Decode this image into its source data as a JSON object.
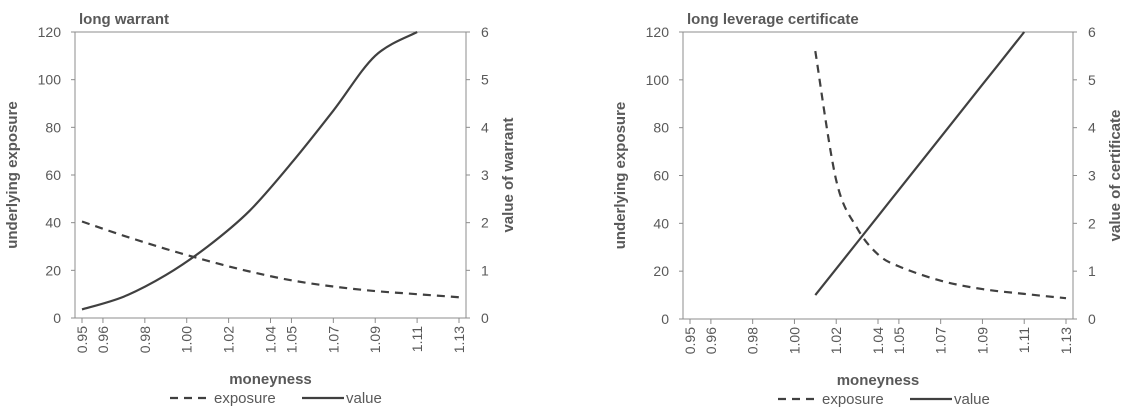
{
  "colors": {
    "axis": "#8c8c8c",
    "line": "#404040",
    "text": "#595959"
  },
  "chart_data": [
    {
      "type": "line",
      "title": "long warrant",
      "xlabel": "moneyness",
      "ylabel": "underlying exposure",
      "y2label": "value of warrant",
      "categories": [
        "0.95",
        "0.96",
        "0.98",
        "1.00",
        "1.02",
        "1.04",
        "1.05",
        "1.07",
        "1.09",
        "1.11",
        "1.13"
      ],
      "ylim": [
        0,
        120
      ],
      "y2lim": [
        0,
        6
      ],
      "yticks": [
        "0",
        "20",
        "40",
        "60",
        "80",
        "100",
        "120"
      ],
      "y2ticks": [
        "0",
        "1",
        "2",
        "3",
        "4",
        "5",
        "6"
      ],
      "grid": false,
      "legend": "bottom",
      "legend_labels": [
        "exposure",
        "value"
      ],
      "series": [
        {
          "name": "exposure",
          "axis": "left",
          "style": "dashed",
          "x": [
            0.95,
            0.97,
            0.99,
            1.01,
            1.03,
            1.05,
            1.07,
            1.09,
            1.11,
            1.13
          ],
          "values": [
            40.5,
            34.5,
            29.0,
            24.0,
            19.5,
            15.8,
            13.2,
            11.3,
            10.0,
            8.7
          ]
        },
        {
          "name": "value",
          "axis": "right",
          "style": "solid",
          "x": [
            0.95,
            0.97,
            0.99,
            1.01,
            1.03,
            1.05,
            1.07,
            1.09,
            1.11
          ],
          "values": [
            0.18,
            0.45,
            0.9,
            1.5,
            2.25,
            3.25,
            4.35,
            5.5,
            6.0
          ]
        }
      ]
    },
    {
      "type": "line",
      "title": "long leverage certificate",
      "xlabel": "moneyness",
      "ylabel": "underlying exposure",
      "y2label": "value of certificate",
      "categories": [
        "0.95",
        "0.96",
        "0.98",
        "1.00",
        "1.02",
        "1.04",
        "1.05",
        "1.07",
        "1.09",
        "1.11",
        "1.13"
      ],
      "ylim": [
        0,
        120
      ],
      "y2lim": [
        0,
        6
      ],
      "yticks": [
        "0",
        "20",
        "40",
        "60",
        "80",
        "100",
        "120"
      ],
      "y2ticks": [
        "0",
        "1",
        "2",
        "3",
        "4",
        "5",
        "6"
      ],
      "grid": false,
      "legend": "bottom",
      "legend_labels": [
        "exposure",
        "value"
      ],
      "series": [
        {
          "name": "exposure",
          "axis": "left",
          "style": "dashed",
          "x": [
            1.01,
            1.02,
            1.03,
            1.04,
            1.05,
            1.07,
            1.09,
            1.11,
            1.13
          ],
          "values": [
            112,
            58,
            38,
            27,
            22,
            16,
            12.5,
            10.5,
            8.7
          ]
        },
        {
          "name": "value",
          "axis": "right",
          "style": "solid",
          "x": [
            1.01,
            1.03,
            1.05,
            1.07,
            1.09,
            1.11
          ],
          "values": [
            0.5,
            1.6,
            2.7,
            3.8,
            4.9,
            6.0
          ]
        }
      ]
    }
  ]
}
